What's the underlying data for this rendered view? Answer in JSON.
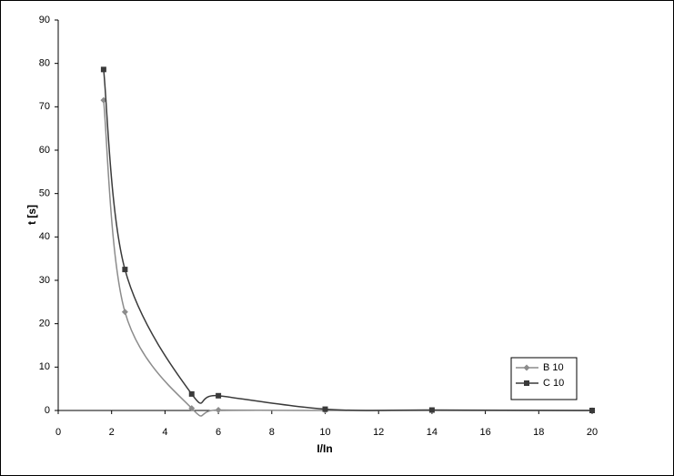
{
  "chart_data": {
    "type": "line",
    "smooth": true,
    "x_label": "I/In",
    "y_label": "t [s]",
    "xlim": [
      0,
      20
    ],
    "xticks": [
      0,
      2,
      4,
      6,
      8,
      10,
      12,
      14,
      16,
      18,
      20
    ],
    "ylim": [
      0,
      90
    ],
    "yticks": [
      0,
      10,
      20,
      30,
      40,
      50,
      60,
      70,
      80,
      90
    ],
    "legend_position": "lower right",
    "series": [
      {
        "name": "B 10",
        "color": "#8c8c8c",
        "marker": "diamond",
        "x": [
          1.7,
          2.5,
          5,
          6,
          10,
          14,
          20
        ],
        "values": [
          71.5,
          22.7,
          0.5,
          0.1,
          0,
          0,
          0
        ]
      },
      {
        "name": "C 10",
        "color": "#3a3a3a",
        "marker": "square",
        "x": [
          1.7,
          2.5,
          5,
          6,
          10,
          14,
          20
        ],
        "values": [
          78.6,
          32.5,
          3.8,
          3.4,
          0.3,
          0.1,
          0
        ]
      }
    ]
  }
}
